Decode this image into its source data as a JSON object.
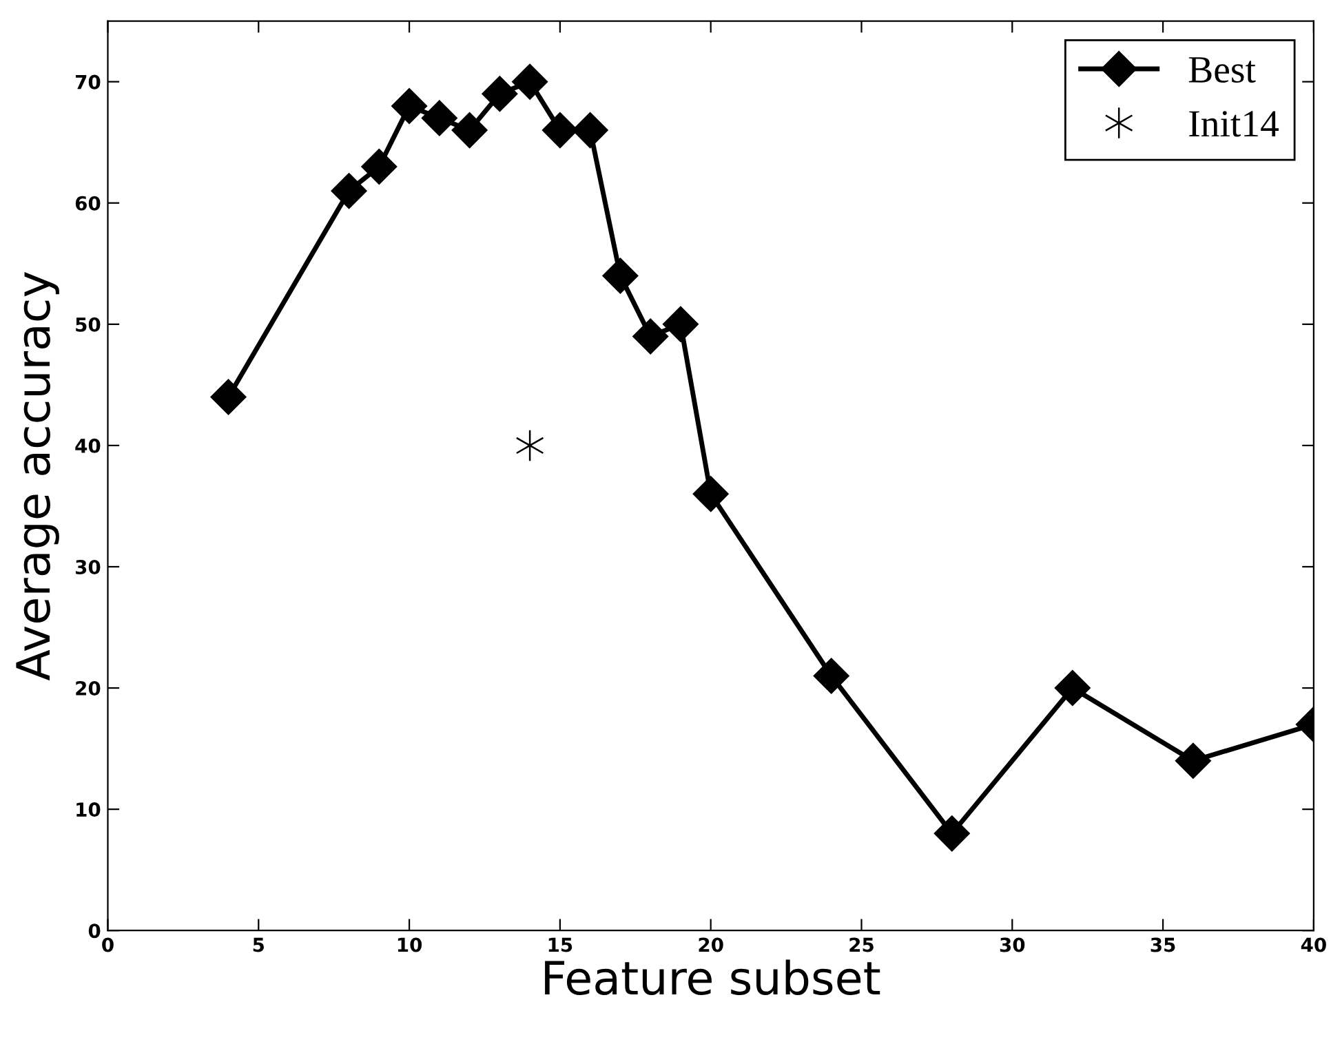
{
  "chart_data": {
    "type": "line",
    "xlabel": "Feature subset",
    "ylabel": "Average accuracy",
    "xlim": [
      0,
      40
    ],
    "xticks": [
      0,
      5,
      10,
      15,
      20,
      25,
      30,
      35,
      40
    ],
    "ylim": [
      0,
      75
    ],
    "yticks": [
      0,
      10,
      20,
      30,
      40,
      50,
      60,
      70
    ],
    "grid": false,
    "legend": "top right",
    "series": [
      {
        "name": "Best",
        "marker": "diamond",
        "line_style": "solid",
        "color": "#000000",
        "x": [
          4,
          8,
          9,
          10,
          11,
          12,
          13,
          14,
          15,
          16,
          17,
          18,
          19,
          20,
          24,
          28,
          32,
          36,
          40
        ],
        "values": [
          44,
          61,
          63,
          68,
          67,
          66,
          69,
          70,
          66,
          66,
          54,
          49,
          50,
          36,
          21,
          8,
          20,
          14,
          17
        ]
      },
      {
        "name": "Init14",
        "type": "scatter",
        "marker": "cross",
        "color": "#000000",
        "x": [
          14
        ],
        "values": [
          40
        ]
      }
    ]
  }
}
